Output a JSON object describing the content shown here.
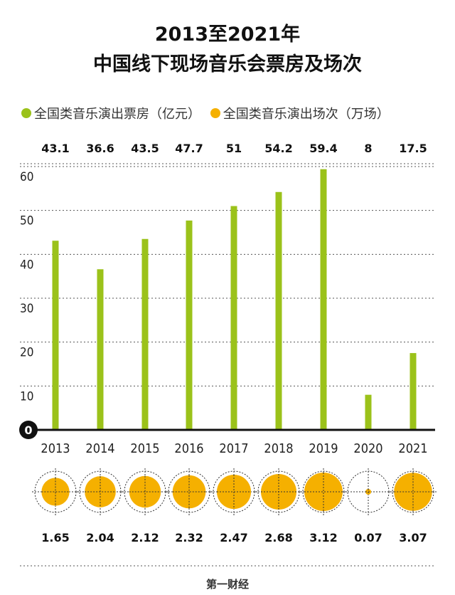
{
  "title": {
    "line1": "2013至2021年",
    "line2": "中国线下现场音乐会票房及场次"
  },
  "legend": {
    "box_office_label": "全国类音乐演出票房（亿元）",
    "sessions_label": "全国类音乐演出场次（万场）"
  },
  "colors": {
    "bar": "#9bc21a",
    "circle": "#f5b000",
    "axis": "#111111",
    "grid": "#555555"
  },
  "source": "第一财经",
  "chart_data": {
    "type": "bar",
    "categories": [
      "2013",
      "2014",
      "2015",
      "2016",
      "2017",
      "2018",
      "2019",
      "2020",
      "2021"
    ],
    "series": [
      {
        "name": "全国类音乐演出票房（亿元）",
        "values": [
          43.1,
          36.6,
          43.5,
          47.7,
          51,
          54.2,
          59.4,
          8,
          17.5
        ],
        "labels": [
          "43.1",
          "36.6",
          "43.5",
          "47.7",
          "51",
          "54.2",
          "59.4",
          "8",
          "17.5"
        ]
      },
      {
        "name": "全国类音乐演出场次（万场）",
        "values": [
          1.65,
          2.04,
          2.12,
          2.32,
          2.47,
          2.68,
          3.12,
          0.07,
          3.07
        ],
        "labels": [
          "1.65",
          "2.04",
          "2.12",
          "2.32",
          "2.47",
          "2.68",
          "3.12",
          "0.07",
          "3.07"
        ]
      }
    ],
    "ylim": [
      0,
      60
    ],
    "yticks": [
      "0",
      "10",
      "20",
      "30",
      "40",
      "50",
      "60"
    ],
    "grid": true
  }
}
